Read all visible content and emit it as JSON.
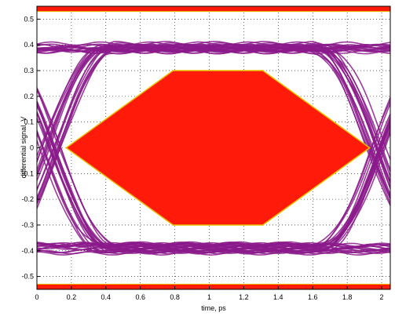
{
  "chart_data": {
    "type": "eye-diagram",
    "title": "",
    "xlabel": "time, ps",
    "ylabel": "differential signal, V",
    "xlim": [
      0,
      2.05
    ],
    "ylim": [
      -0.55,
      0.55
    ],
    "x_ticks": [
      0,
      0.2,
      0.4,
      0.6,
      0.8,
      1,
      1.2,
      1.4,
      1.6,
      1.8,
      2
    ],
    "x_tick_labels": [
      "0",
      "0.2",
      "0.4",
      "0.6",
      "0.8",
      "1",
      "1.2",
      "1.4",
      "1.6",
      "1.8",
      "2"
    ],
    "y_ticks": [
      0.5,
      0.4,
      0.3,
      0.2,
      0.1,
      0,
      -0.1,
      -0.2,
      -0.3,
      -0.4,
      -0.5
    ],
    "y_tick_labels": [
      "0.5",
      "0.4",
      "0.3",
      "0.2",
      "0.1",
      "0",
      "-0.1",
      "-0.2",
      "-0.3",
      "-0.4",
      "-0.5"
    ],
    "grid": "dotted",
    "trace_color": "#8b1a8b",
    "mask_color": "#ff1a0a",
    "mask_edge_color": "#e8c000",
    "traces": {
      "high_level_v": 0.39,
      "low_level_v": -0.39,
      "band_thickness_v": 0.03,
      "crossing_times_ps": [
        0.08,
        1.98
      ],
      "crossing_spread_ps": 0.12
    },
    "mask": {
      "polygon": [
        {
          "x": 0.17,
          "y": 0
        },
        {
          "x": 0.79,
          "y": 0.3
        },
        {
          "x": 1.31,
          "y": 0.3
        },
        {
          "x": 1.93,
          "y": 0
        },
        {
          "x": 1.31,
          "y": -0.3
        },
        {
          "x": 0.79,
          "y": -0.3
        }
      ],
      "upper_limit_v": 0.53,
      "lower_limit_v": -0.53
    }
  }
}
